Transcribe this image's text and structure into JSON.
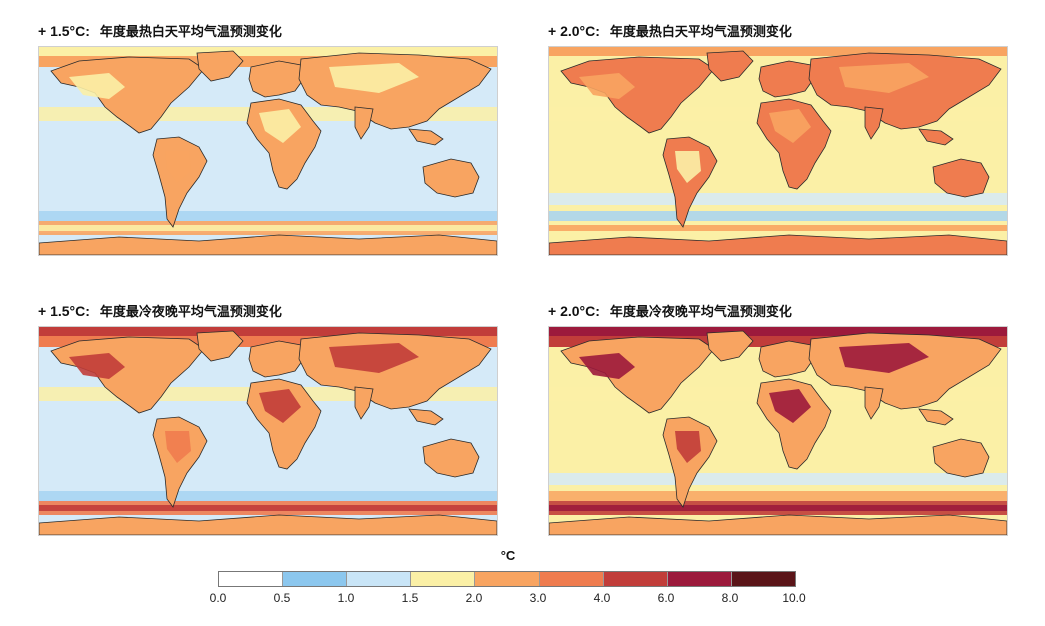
{
  "panels": [
    {
      "prefix": "+ 1.5°C:",
      "title": "年度最热白天平均气温预测变化",
      "background": "#d5eaf8",
      "land_color": "#f8a461",
      "ocean_band_colors": [
        "#fbf0a6",
        "#d5eaf8",
        "#a6d3f2",
        "#ffffff"
      ],
      "polar_colors": [
        "#fbf0a6",
        "#f8a461"
      ]
    },
    {
      "prefix": "+ 2.0°C:",
      "title": "年度最热白天平均气温预测变化",
      "background": "#fbf0a6",
      "land_color": "#ef7c4f",
      "ocean_band_colors": [
        "#fbf0a6",
        "#d5eaf8",
        "#a6d3f2"
      ],
      "polar_colors": [
        "#f8a461",
        "#fbf0a6"
      ]
    },
    {
      "prefix": "+ 1.5°C:",
      "title": "年度最冷夜晚平均气温预测变化",
      "background": "#d5eaf8",
      "land_color": "#f8a461",
      "ocean_band_colors": [
        "#fbf0a6",
        "#d5eaf8",
        "#a6d3f2"
      ],
      "polar_colors": [
        "#c13d3a",
        "#ef7c4f"
      ]
    },
    {
      "prefix": "+ 2.0°C:",
      "title": "年度最冷夜晚平均气温预测变化",
      "background": "#fbf0a6",
      "land_color": "#f8a461",
      "ocean_band_colors": [
        "#fbf0a6",
        "#d5eaf8",
        "#f8a461"
      ],
      "polar_colors": [
        "#9c1a3c",
        "#c13d3a"
      ]
    }
  ],
  "legend": {
    "unit": "°C",
    "ticks": [
      "0.0",
      "0.5",
      "1.0",
      "1.5",
      "2.0",
      "3.0",
      "4.0",
      "6.0",
      "8.0",
      "10.0"
    ],
    "colors": [
      "#ffffff",
      "#8cc7ee",
      "#c9e5f7",
      "#fbf0a6",
      "#f8a461",
      "#ef7c4f",
      "#c13d3a",
      "#9c1a3c",
      "#5a1418"
    ]
  }
}
